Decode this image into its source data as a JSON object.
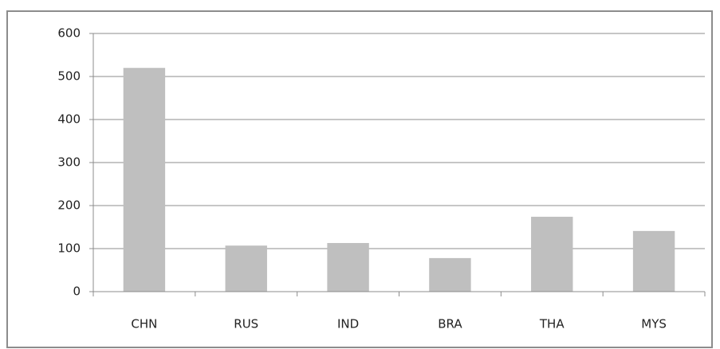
{
  "chart_data": {
    "type": "bar",
    "categories": [
      "CHN",
      "RUS",
      "IND",
      "BRA",
      "THA",
      "MYS"
    ],
    "values": [
      520,
      107,
      113,
      78,
      174,
      141
    ],
    "color": "#bfbfbf",
    "ylim": [
      0,
      600
    ],
    "yticks": [
      0,
      100,
      200,
      300,
      400,
      500,
      600
    ],
    "grid": true
  }
}
